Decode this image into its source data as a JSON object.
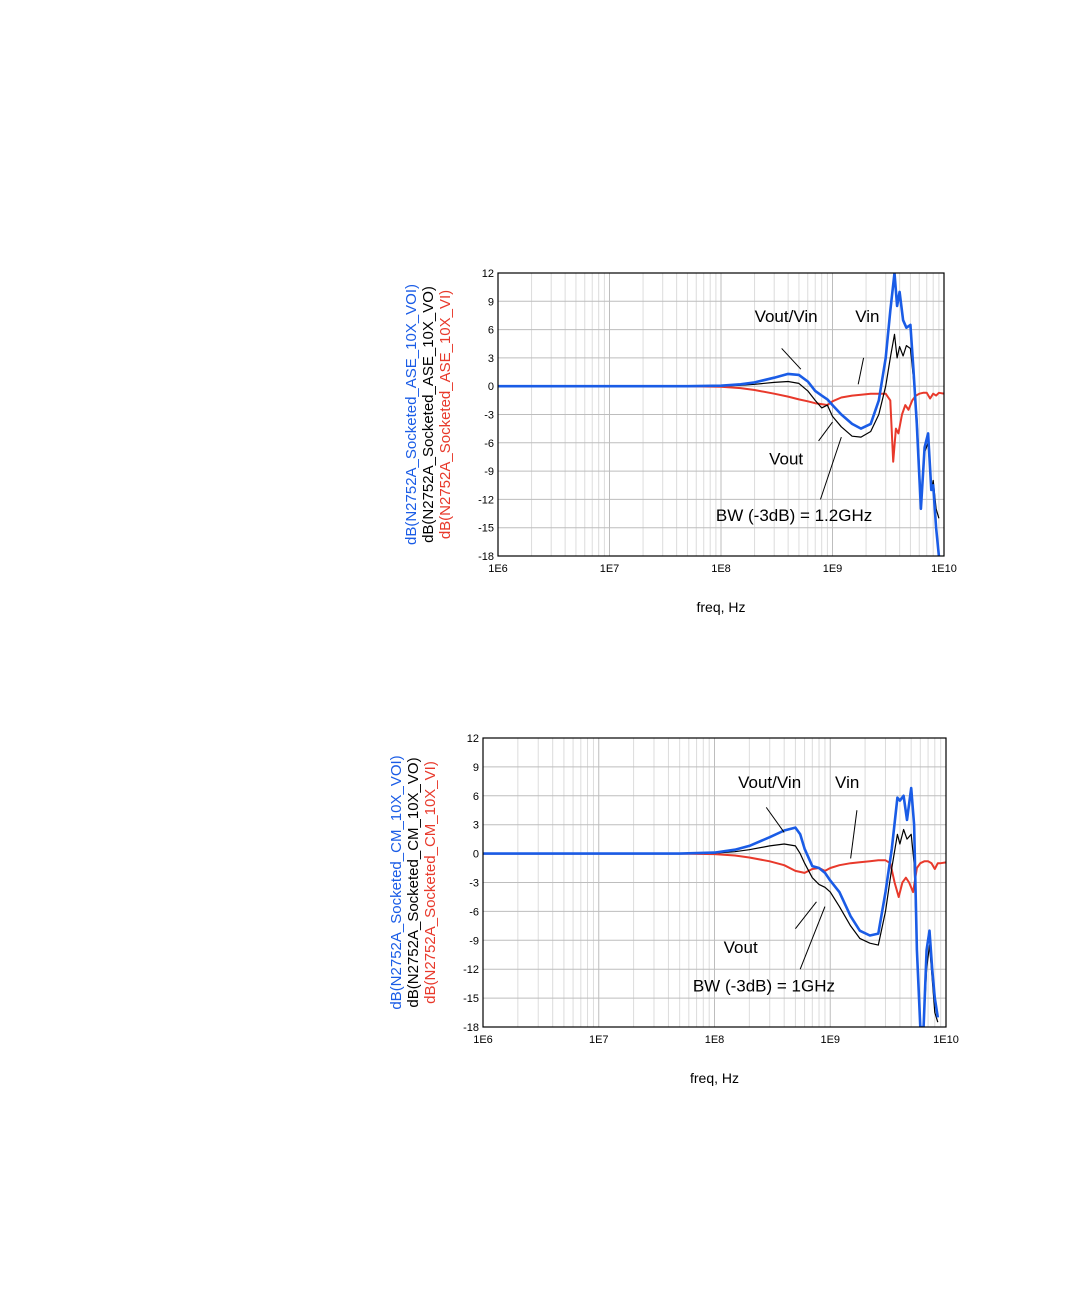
{
  "colors": {
    "blue": "#1a5ce6",
    "black": "#000000",
    "red": "#e8392b"
  },
  "chart_data": [
    {
      "type": "line",
      "xlabel": "freq, Hz",
      "xscale": "log",
      "xlim": [
        1000000.0,
        10000000000.0
      ],
      "ylim": [
        -18,
        12
      ],
      "xticks": [
        "1E6",
        "1E7",
        "1E8",
        "1E9",
        "1E10"
      ],
      "yticks": [
        "12",
        "9",
        "6",
        "3",
        "0",
        "-3",
        "-6",
        "-9",
        "-12",
        "-15",
        "-18"
      ],
      "grid": true,
      "ylabels": [
        {
          "text": "dB(N2752A_Socketed_ASE_10X_VOI)",
          "color": "#1a5ce6"
        },
        {
          "text": "dB(N2752A_Socketed_ASE_10X_VO)",
          "color": "#000000"
        },
        {
          "text": "dB(N2752A_Socketed_ASE_10X_VI)",
          "color": "#e8392b"
        }
      ],
      "annotations": [
        {
          "text": "Vout/Vin",
          "x": 200000000.0,
          "y": 6.8,
          "arrow_from": [
            350000000.0,
            4.0
          ],
          "arrow_to": [
            520000000.0,
            1.8
          ]
        },
        {
          "text": "Vin",
          "x": 1600000000.0,
          "y": 6.8,
          "arrow_from": [
            1900000000.0,
            3.0
          ],
          "arrow_to": [
            1700000000.0,
            0.2
          ]
        },
        {
          "text": "Vout",
          "x": 270000000.0,
          "y": -8.3,
          "arrow_from": [
            750000000.0,
            -5.8
          ],
          "arrow_to": [
            1000000000.0,
            -3.8
          ]
        },
        {
          "text": "BW (-3dB) = 1.2GHz",
          "x": 90000000.0,
          "y": -14.3,
          "arrow_from": [
            780000000.0,
            -12.0
          ],
          "arrow_to": [
            1200000000.0,
            -5.4
          ]
        }
      ],
      "series": [
        {
          "color": "#1a5ce6",
          "x": [
            1000000.0,
            10000000.0,
            50000000.0,
            100000000.0,
            150000000.0,
            200000000.0,
            300000000.0,
            400000000.0,
            500000000.0,
            600000000.0,
            700000000.0,
            800000000.0,
            900000000.0,
            1000000000.0,
            1200000000.0,
            1500000000.0,
            1800000000.0,
            2200000000.0,
            2600000000.0,
            3000000000.0,
            3300000000.0,
            3600000000.0,
            3800000000.0,
            4000000000.0,
            4300000000.0,
            4600000000.0,
            5000000000.0,
            5300000000.0,
            5700000000.0,
            6200000000.0,
            6700000000.0,
            7200000000.0,
            7700000000.0,
            8000000000.0,
            8500000000.0,
            9000000000.0
          ],
          "y": [
            0,
            0,
            0,
            0.05,
            0.2,
            0.4,
            0.9,
            1.3,
            1.2,
            0.5,
            -0.5,
            -1.0,
            -1.4,
            -2.0,
            -3.0,
            -4.0,
            -4.5,
            -4.0,
            -1.5,
            3.0,
            8.0,
            12.0,
            8.5,
            10.0,
            7.0,
            6.2,
            6.5,
            2.0,
            -4.0,
            -13.0,
            -6.5,
            -5.0,
            -11.0,
            -10.5,
            -15.0,
            -18.0
          ]
        },
        {
          "color": "#000000",
          "x": [
            1000000.0,
            10000000.0,
            50000000.0,
            100000000.0,
            150000000.0,
            200000000.0,
            300000000.0,
            400000000.0,
            500000000.0,
            600000000.0,
            700000000.0,
            800000000.0,
            900000000.0,
            1000000000.0,
            1200000000.0,
            1500000000.0,
            1800000000.0,
            2200000000.0,
            2600000000.0,
            3000000000.0,
            3300000000.0,
            3600000000.0,
            3800000000.0,
            4000000000.0,
            4300000000.0,
            4600000000.0,
            5000000000.0,
            5300000000.0,
            5700000000.0,
            6200000000.0,
            6700000000.0,
            7200000000.0,
            7700000000.0,
            8000000000.0,
            8500000000.0,
            9000000000.0
          ],
          "y": [
            0,
            0,
            0,
            0.02,
            0.1,
            0.2,
            0.4,
            0.5,
            0.3,
            -0.5,
            -1.5,
            -2.3,
            -2.0,
            -3.2,
            -4.3,
            -5.3,
            -5.4,
            -4.8,
            -3.0,
            0.0,
            3.0,
            5.5,
            3.0,
            4.2,
            3.2,
            4.3,
            4.0,
            1.0,
            -3.0,
            -12.0,
            -7.0,
            -6.0,
            -11.0,
            -10.0,
            -13.0,
            -14.0
          ]
        },
        {
          "color": "#e8392b",
          "x": [
            1000000.0,
            10000000.0,
            50000000.0,
            100000000.0,
            150000000.0,
            200000000.0,
            300000000.0,
            400000000.0,
            500000000.0,
            600000000.0,
            700000000.0,
            800000000.0,
            900000000.0,
            1000000000.0,
            1200000000.0,
            1500000000.0,
            1800000000.0,
            2200000000.0,
            2600000000.0,
            3000000000.0,
            3300000000.0,
            3500000000.0,
            3700000000.0,
            3900000000.0,
            4200000000.0,
            4500000000.0,
            4800000000.0,
            5200000000.0,
            5600000000.0,
            6000000000.0,
            6500000000.0,
            7000000000.0,
            7500000000.0,
            8000000000.0,
            8500000000.0,
            9000000000.0,
            10000000000.0
          ],
          "y": [
            0,
            0,
            0,
            -0.05,
            -0.2,
            -0.4,
            -0.8,
            -1.1,
            -1.4,
            -1.6,
            -1.8,
            -1.9,
            -2.0,
            -1.6,
            -1.2,
            -1.0,
            -0.9,
            -0.8,
            -0.8,
            -0.8,
            -1.5,
            -8.0,
            -4.5,
            -5.0,
            -3.0,
            -2.0,
            -2.5,
            -1.5,
            -1.0,
            -0.8,
            -0.7,
            -0.7,
            -1.3,
            -0.8,
            -1.0,
            -0.7,
            -0.8
          ]
        }
      ]
    },
    {
      "type": "line",
      "xlabel": "freq, Hz",
      "xscale": "log",
      "xlim": [
        1000000.0,
        10000000000.0
      ],
      "ylim": [
        -18,
        12
      ],
      "xticks": [
        "1E6",
        "1E7",
        "1E8",
        "1E9",
        "1E10"
      ],
      "yticks": [
        "12",
        "9",
        "6",
        "3",
        "0",
        "-3",
        "-6",
        "-9",
        "-12",
        "-15",
        "-18"
      ],
      "grid": true,
      "ylabels": [
        {
          "text": "dB(N2752A_Socketed_CM_10X_VOI)",
          "color": "#1a5ce6"
        },
        {
          "text": "dB(N2752A_Socketed_CM_10X_VO)",
          "color": "#000000"
        },
        {
          "text": "dB(N2752A_Socketed_CM_10X_VI)",
          "color": "#e8392b"
        }
      ],
      "annotations": [
        {
          "text": "Vout/Vin",
          "x": 160000000.0,
          "y": 6.8,
          "arrow_from": [
            280000000.0,
            4.8
          ],
          "arrow_to": [
            400000000.0,
            2.2
          ]
        },
        {
          "text": "Vin",
          "x": 1100000000.0,
          "y": 6.8,
          "arrow_from": [
            1700000000.0,
            4.5
          ],
          "arrow_to": [
            1500000000.0,
            -0.5
          ]
        },
        {
          "text": "Vout",
          "x": 120000000.0,
          "y": -10.3,
          "arrow_from": [
            500000000.0,
            -7.8
          ],
          "arrow_to": [
            760000000.0,
            -5.0
          ]
        },
        {
          "text": "BW (-3dB) = 1GHz",
          "x": 65000000.0,
          "y": -14.3,
          "arrow_from": [
            550000000.0,
            -12.0
          ],
          "arrow_to": [
            900000000.0,
            -5.5
          ]
        }
      ],
      "series": [
        {
          "color": "#1a5ce6",
          "x": [
            1000000.0,
            10000000.0,
            50000000.0,
            100000000.0,
            150000000.0,
            200000000.0,
            300000000.0,
            400000000.0,
            500000000.0,
            550000000.0,
            600000000.0,
            700000000.0,
            800000000.0,
            900000000.0,
            1000000000.0,
            1200000000.0,
            1500000000.0,
            1800000000.0,
            2200000000.0,
            2600000000.0,
            3000000000.0,
            3400000000.0,
            3800000000.0,
            4000000000.0,
            4300000000.0,
            4600000000.0,
            5000000000.0,
            5300000000.0,
            5600000000.0,
            6000000000.0,
            6400000000.0,
            6800000000.0,
            7200000000.0,
            7600000000.0,
            8000000000.0,
            8500000000.0
          ],
          "y": [
            0,
            0,
            0,
            0.1,
            0.4,
            0.8,
            1.7,
            2.4,
            2.7,
            2.0,
            0.5,
            -1.3,
            -1.5,
            -2.0,
            -2.8,
            -4.0,
            -6.5,
            -8.0,
            -8.5,
            -8.3,
            -4.0,
            0.5,
            5.8,
            5.5,
            6.0,
            3.5,
            6.8,
            3.0,
            -10.0,
            -18.0,
            -18.0,
            -10.0,
            -8.0,
            -12.0,
            -15.0,
            -17.0
          ]
        },
        {
          "color": "#000000",
          "x": [
            1000000.0,
            10000000.0,
            50000000.0,
            100000000.0,
            150000000.0,
            200000000.0,
            300000000.0,
            400000000.0,
            500000000.0,
            550000000.0,
            600000000.0,
            700000000.0,
            800000000.0,
            900000000.0,
            1000000000.0,
            1200000000.0,
            1500000000.0,
            1800000000.0,
            2200000000.0,
            2600000000.0,
            3000000000.0,
            3400000000.0,
            3800000000.0,
            4000000000.0,
            4300000000.0,
            4600000000.0,
            5000000000.0,
            5300000000.0,
            5600000000.0,
            6000000000.0,
            6400000000.0,
            6800000000.0,
            7200000000.0,
            7600000000.0,
            8000000000.0,
            8500000000.0
          ],
          "y": [
            0,
            0,
            0,
            0.05,
            0.2,
            0.4,
            0.8,
            1.0,
            0.8,
            0.0,
            -1.0,
            -2.5,
            -3.2,
            -3.5,
            -4.0,
            -5.5,
            -7.5,
            -8.8,
            -9.3,
            -9.5,
            -6.0,
            -1.5,
            2.0,
            1.0,
            2.5,
            1.5,
            2.0,
            -1.0,
            -10.0,
            -18.0,
            -18.0,
            -12.0,
            -9.5,
            -13.0,
            -16.5,
            -17.5
          ]
        },
        {
          "color": "#e8392b",
          "x": [
            1000000.0,
            10000000.0,
            50000000.0,
            100000000.0,
            150000000.0,
            200000000.0,
            300000000.0,
            400000000.0,
            500000000.0,
            600000000.0,
            700000000.0,
            800000000.0,
            900000000.0,
            1000000000.0,
            1200000000.0,
            1500000000.0,
            1800000000.0,
            2200000000.0,
            2600000000.0,
            3000000000.0,
            3300000000.0,
            3600000000.0,
            3900000000.0,
            4200000000.0,
            4500000000.0,
            4800000000.0,
            5200000000.0,
            5600000000.0,
            6000000000.0,
            6500000000.0,
            7000000000.0,
            7500000000.0,
            8000000000.0,
            8500000000.0,
            9000000000.0,
            10000000000.0
          ],
          "y": [
            0,
            0,
            0,
            -0.05,
            -0.2,
            -0.4,
            -0.8,
            -1.2,
            -1.8,
            -2.0,
            -1.6,
            -1.5,
            -1.8,
            -1.5,
            -1.2,
            -1.0,
            -0.9,
            -0.8,
            -0.7,
            -0.7,
            -1.0,
            -3.0,
            -4.5,
            -3.0,
            -2.5,
            -3.0,
            -4.0,
            -1.5,
            -1.0,
            -0.8,
            -0.8,
            -1.0,
            -1.6,
            -1.0,
            -1.0,
            -0.9
          ]
        }
      ]
    }
  ]
}
